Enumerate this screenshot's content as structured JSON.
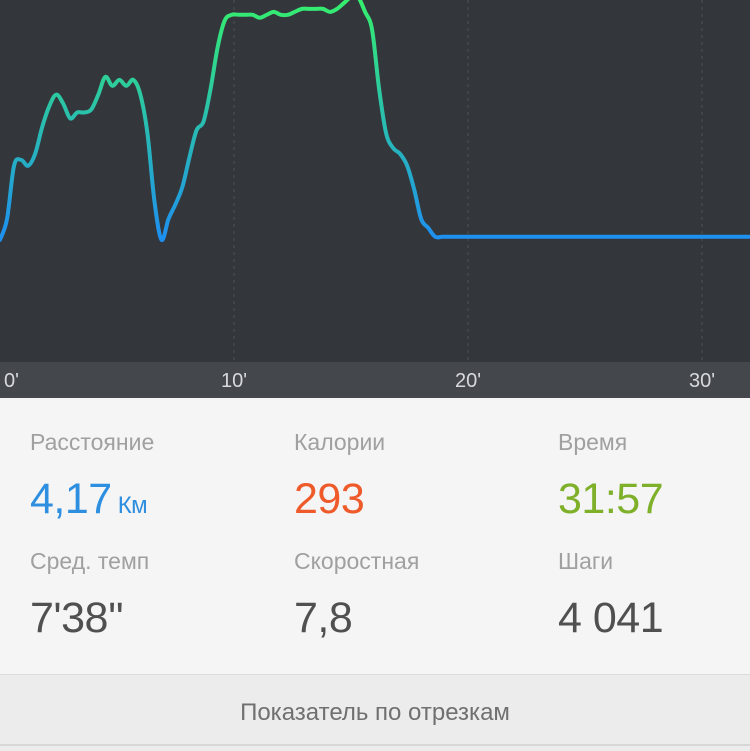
{
  "chart_data": {
    "type": "line",
    "xlabel": "",
    "ylabel": "",
    "x_ticks": [
      "0'",
      "10'",
      "20'",
      "30'"
    ],
    "xlim": [
      0,
      32
    ],
    "ylim": [
      0,
      100
    ],
    "grid": "vertical dashed lines at 10', 20', 30'",
    "colors": {
      "low": "#1e8ff0",
      "high": "#36f06b",
      "background": "#33363b"
    },
    "series": [
      {
        "x": [
          0,
          0.3,
          0.6,
          0.9,
          1.2,
          1.5,
          1.8,
          2.1,
          2.4,
          2.7,
          3.0,
          3.3,
          3.6,
          3.9,
          4.2,
          4.5,
          4.8,
          5.1,
          5.4,
          5.7,
          6.0,
          6.3,
          6.6,
          6.9,
          7.2,
          7.5,
          7.8,
          8.1,
          8.4,
          8.7,
          9.0,
          9.3,
          9.6,
          9.9,
          10.2,
          10.5,
          10.8,
          11.1,
          11.4,
          11.7,
          12.0,
          12.3,
          12.6,
          12.9,
          13.2,
          13.5,
          13.8,
          14.1,
          14.4,
          14.7,
          15.0,
          15.3,
          15.6,
          15.9,
          16.2,
          16.5,
          16.8,
          17.1,
          17.4,
          17.7,
          18.0,
          18.3,
          18.6,
          18.9,
          19.2,
          19.5,
          19.8,
          20.1,
          20.4,
          20.7,
          21.0,
          21.3,
          21.6,
          21.9,
          22.2,
          22.5,
          22.8,
          23.1,
          23.4,
          23.7,
          24.0,
          24.3,
          24.6,
          24.9,
          25.2,
          25.5,
          25.8,
          26.1,
          26.4,
          26.7,
          27.0,
          27.3,
          27.6,
          27.9,
          28.2,
          28.5,
          28.8,
          29.1,
          29.4,
          29.7,
          30.0,
          30.5,
          31.0,
          31.5,
          32.0
        ],
        "values": [
          19,
          26,
          44,
          46,
          44,
          48,
          57,
          64,
          68,
          65,
          60,
          62,
          62,
          63,
          68,
          74,
          71,
          73,
          71,
          73,
          68,
          55,
          32,
          19,
          26,
          31,
          37,
          47,
          56,
          59,
          70,
          84,
          93,
          95,
          95,
          95,
          95,
          94,
          95,
          96,
          95,
          95,
          96,
          97,
          97,
          97,
          97,
          96,
          97,
          99,
          101,
          101,
          96,
          90,
          70,
          55,
          50,
          48,
          44,
          36,
          26,
          23,
          20,
          20,
          20,
          20,
          20,
          20,
          20,
          20,
          20,
          20,
          20,
          20,
          20,
          20,
          20,
          20,
          20,
          20,
          20,
          20,
          20,
          20,
          20,
          20,
          20,
          20,
          20,
          20,
          20,
          20,
          20,
          20,
          20,
          20,
          20,
          20,
          20,
          20,
          20,
          20,
          20,
          20,
          20
        ]
      }
    ]
  },
  "stats": [
    {
      "label": "Расстояние",
      "value": "4,17",
      "unit": "Км",
      "color": "#2e8ee0"
    },
    {
      "label": "Калории",
      "value": "293",
      "unit": "",
      "color": "#ee5a2a"
    },
    {
      "label": "Время",
      "value": "31:57",
      "unit": "",
      "color": "#7fb02a"
    },
    {
      "label": "Сред. темп",
      "value": "7'38''",
      "unit": "",
      "color": "#505050"
    },
    {
      "label": "Скоростная",
      "value": "7,8",
      "unit": "",
      "color": "#505050"
    },
    {
      "label": "Шаги",
      "value": "4 041",
      "unit": "",
      "color": "#505050"
    }
  ],
  "footer": {
    "label": "Показатель по отрезкам"
  }
}
